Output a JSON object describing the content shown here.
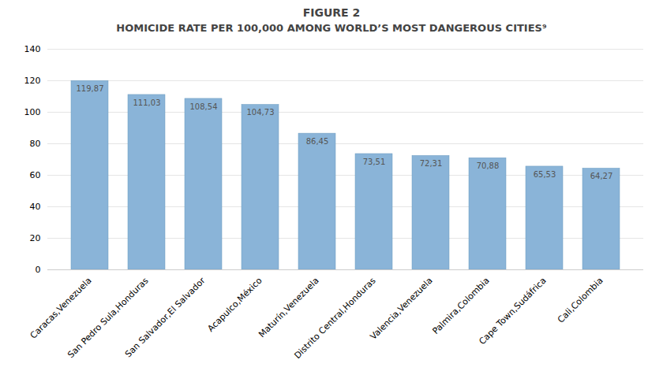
{
  "chart_data": {
    "type": "bar",
    "title": "FIGURE 2",
    "subtitle": "HOMICIDE RATE PER 100,000 AMONG WORLD’S MOST DANGEROUS CITIES⁹",
    "categories": [
      "Caracas,Venezuela",
      "San Pedro Sula,Honduras",
      "San Salvador,El Salvador",
      "Acapulco,México",
      "Maturín,Venezuela",
      "Distrito Central,Honduras",
      "Valencia,Venezuela",
      "Palmira,Colombia",
      "Cape Town,Sudáfrica",
      "Cali,Colombia"
    ],
    "values": [
      119.87,
      111.03,
      108.54,
      104.73,
      86.45,
      73.51,
      72.31,
      70.88,
      65.53,
      64.27
    ],
    "value_labels": [
      "119,87",
      "111,03",
      "108,54",
      "104,73",
      "86,45",
      "73,51",
      "72,31",
      "70,88",
      "65,53",
      "64,27"
    ],
    "data_labels": true,
    "color": "#8ab4d8",
    "ylim": [
      0,
      140
    ],
    "yticks": [
      0,
      20,
      40,
      60,
      80,
      100,
      120,
      140
    ],
    "grid": true
  }
}
